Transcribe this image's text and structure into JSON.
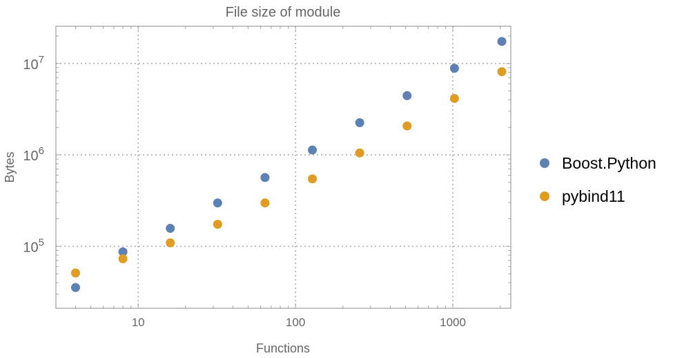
{
  "chart_data": {
    "type": "scatter",
    "title": "File size of module",
    "xlabel": "Functions",
    "ylabel": "Bytes",
    "xscale": "log",
    "yscale": "log",
    "xlim": [
      3,
      2335
    ],
    "ylim": [
      21000,
      25500000
    ],
    "grid": true,
    "legend_position": "right",
    "x_ticks": [
      {
        "value": 10,
        "label": "10"
      },
      {
        "value": 100,
        "label": "100"
      },
      {
        "value": 1000,
        "label": "1000"
      }
    ],
    "y_ticks": [
      {
        "value": 100000,
        "base": "10",
        "exp": "5"
      },
      {
        "value": 1000000,
        "base": "10",
        "exp": "6"
      },
      {
        "value": 10000000,
        "base": "10",
        "exp": "7"
      }
    ],
    "x": [
      4,
      8,
      16,
      32,
      64,
      128,
      256,
      512,
      1024,
      2048
    ],
    "series": [
      {
        "name": "Boost.Python",
        "color": "#5e81b5",
        "values": [
          35400,
          87000,
          157000,
          298000,
          565000,
          1130000,
          2250000,
          4440000,
          8860000,
          17400000
        ]
      },
      {
        "name": "pybind11",
        "color": "#e19c24",
        "values": [
          51000,
          73000,
          109000,
          174000,
          298000,
          546000,
          1050000,
          2070000,
          4140000,
          8120000
        ]
      }
    ]
  }
}
